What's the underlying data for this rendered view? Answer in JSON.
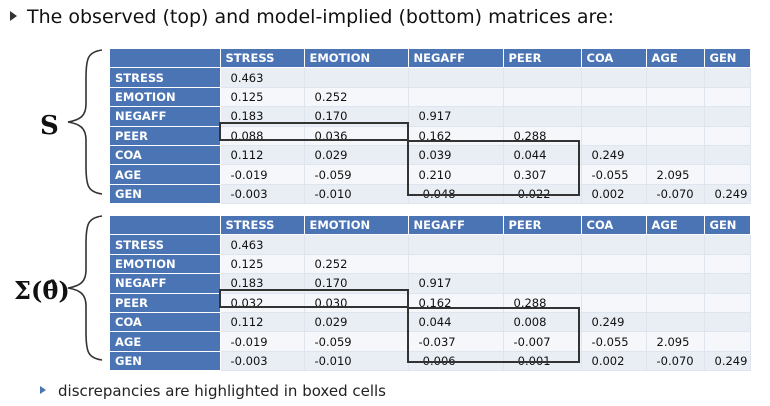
{
  "heading": "The observed (top) and model-implied (bottom) matrices are:",
  "footnote": "discrepancies are highlighted in boxed cells",
  "matrix_s": {
    "label": "S",
    "columns": [
      "STRESS",
      "EMOTION",
      "NEGAFF",
      "PEER",
      "COA",
      "AGE",
      "GEN"
    ],
    "rows": [
      {
        "name": "STRESS",
        "values": [
          "0.463",
          "",
          "",
          "",
          "",
          "",
          ""
        ]
      },
      {
        "name": "EMOTION",
        "values": [
          "0.125",
          "0.252",
          "",
          "",
          "",
          "",
          ""
        ]
      },
      {
        "name": "NEGAFF",
        "values": [
          "0.183",
          "0.170",
          "0.917",
          "",
          "",
          "",
          ""
        ]
      },
      {
        "name": "PEER",
        "values": [
          "0.088",
          "0.036",
          "0.162",
          "0.288",
          "",
          "",
          ""
        ]
      },
      {
        "name": "COA",
        "values": [
          "0.112",
          "0.029",
          "0.039",
          "0.044",
          "0.249",
          "",
          ""
        ]
      },
      {
        "name": "AGE",
        "values": [
          "-0.019",
          "-0.059",
          "0.210",
          "0.307",
          "-0.055",
          "2.095",
          ""
        ]
      },
      {
        "name": "GEN",
        "values": [
          "-0.003",
          "-0.010",
          "-0.048",
          "-0.022",
          "0.002",
          "-0.070",
          "0.249"
        ]
      }
    ]
  },
  "matrix_sigma": {
    "label": "Σ(θ̂)",
    "columns": [
      "STRESS",
      "EMOTION",
      "NEGAFF",
      "PEER",
      "COA",
      "AGE",
      "GEN"
    ],
    "rows": [
      {
        "name": "STRESS",
        "values": [
          "0.463",
          "",
          "",
          "",
          "",
          "",
          ""
        ]
      },
      {
        "name": "EMOTION",
        "values": [
          "0.125",
          "0.252",
          "",
          "",
          "",
          "",
          ""
        ]
      },
      {
        "name": "NEGAFF",
        "values": [
          "0.183",
          "0.170",
          "0.917",
          "",
          "",
          "",
          ""
        ]
      },
      {
        "name": "PEER",
        "values": [
          "0.032",
          "0.030",
          "0.162",
          "0.288",
          "",
          "",
          ""
        ]
      },
      {
        "name": "COA",
        "values": [
          "0.112",
          "0.029",
          "0.044",
          "0.008",
          "0.249",
          "",
          ""
        ]
      },
      {
        "name": "AGE",
        "values": [
          "-0.019",
          "-0.059",
          "-0.037",
          "-0.007",
          "-0.055",
          "2.095",
          ""
        ]
      },
      {
        "name": "GEN",
        "values": [
          "-0.003",
          "-0.010",
          "-0.006",
          "-0.001",
          "0.002",
          "-0.070",
          "0.249"
        ]
      }
    ]
  },
  "colors": {
    "header_bg": "#4a74b4",
    "row_odd": "#e9edf4",
    "row_even": "#f6f7fa",
    "box_border": "#333333"
  }
}
